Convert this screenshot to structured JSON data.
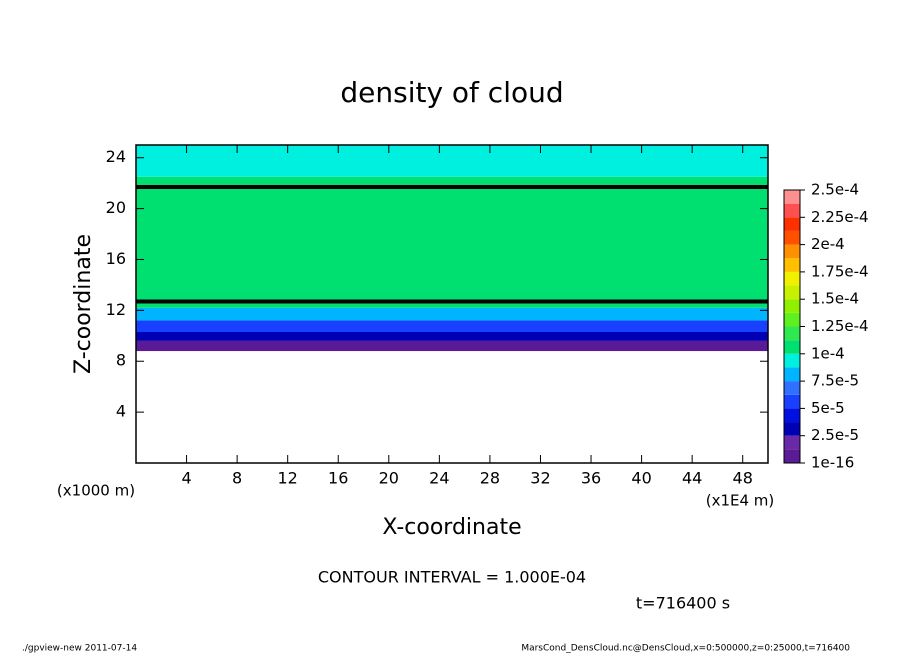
{
  "chart_data": {
    "type": "contour",
    "title": "density of cloud",
    "xlabel": "X-coordinate",
    "ylabel": "Z-coordinate",
    "xunit": "(x1E4 m)",
    "yunit": "(x1000 m)",
    "xlim": [
      0,
      50
    ],
    "ylim": [
      0,
      25
    ],
    "xticks": [
      4,
      8,
      12,
      16,
      20,
      24,
      28,
      32,
      36,
      40,
      44,
      48
    ],
    "yticks": [
      4,
      8,
      12,
      16,
      20,
      24
    ],
    "bands": [
      {
        "z": [
          8.8,
          9.6
        ],
        "value": 1e-05
      },
      {
        "z": [
          9.6,
          10.3
        ],
        "value": 3e-05
      },
      {
        "z": [
          10.3,
          11.2
        ],
        "value": 5.5e-05
      },
      {
        "z": [
          11.2,
          12.2
        ],
        "value": 8e-05
      },
      {
        "z": [
          12.2,
          22.5
        ],
        "value": 0.00011
      },
      {
        "z": [
          22.5,
          25
        ],
        "value": 9e-05
      }
    ],
    "contours": [
      {
        "level": 0.0001,
        "z": 12.7
      },
      {
        "level": 0.0001,
        "z": 21.7
      }
    ],
    "colorbar": {
      "lim": [
        1e-16,
        0.00025
      ],
      "colors": [
        "#5b1a96",
        "#6a2aa8",
        "#0000b4",
        "#0010e0",
        "#1a40ff",
        "#3070ff",
        "#00b4ff",
        "#00f0e0",
        "#00e070",
        "#30e850",
        "#60f020",
        "#90f000",
        "#c8f000",
        "#f0f000",
        "#ffc000",
        "#ff9000",
        "#ff5000",
        "#ff3000",
        "#ff5050",
        "#ff9090"
      ],
      "ticks": [
        {
          "value": 1e-16,
          "label": "1e-16"
        },
        {
          "value": 2.5e-05,
          "label": "2.5e-5"
        },
        {
          "value": 5e-05,
          "label": "5e-5"
        },
        {
          "value": 7.5e-05,
          "label": "7.5e-5"
        },
        {
          "value": 0.0001,
          "label": "1e-4"
        },
        {
          "value": 0.000125,
          "label": "1.25e-4"
        },
        {
          "value": 0.00015,
          "label": "1.5e-4"
        },
        {
          "value": 0.000175,
          "label": "1.75e-4"
        },
        {
          "value": 0.0002,
          "label": "2e-4"
        },
        {
          "value": 0.000225,
          "label": "2.25e-4"
        },
        {
          "value": 0.00025,
          "label": "2.5e-4"
        }
      ]
    },
    "contour_interval": "CONTOUR INTERVAL = 1.000E-04",
    "time_label": "t=716400 s",
    "footer_left": "./gpview-new  2011-07-14",
    "footer_right": "MarsCond_DensCloud.nc@DensCloud,x=0:500000,z=0:25000,t=716400"
  }
}
